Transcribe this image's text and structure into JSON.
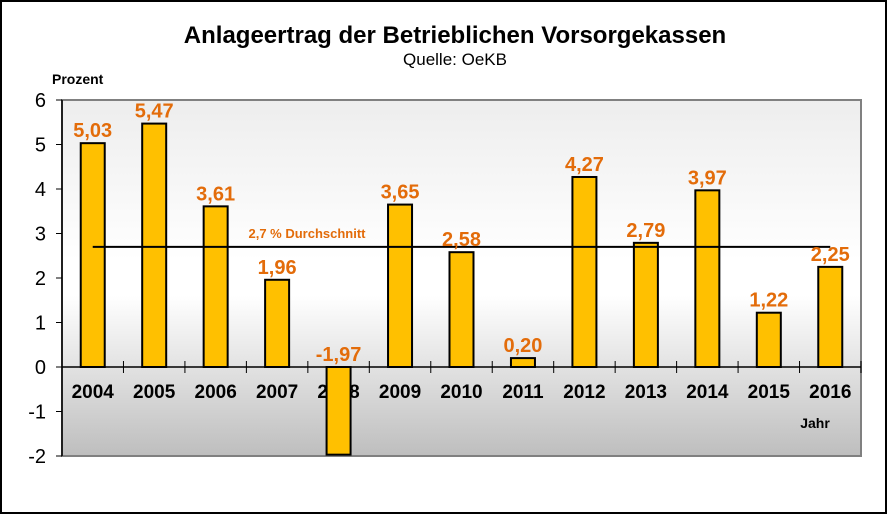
{
  "chart_data": {
    "type": "bar",
    "title": "Anlageertrag der Betrieblichen Vorsorgekassen",
    "subtitle": "Quelle: OeKB",
    "xlabel": "Jahr",
    "ylabel": "Prozent",
    "ylim": [
      -2,
      6
    ],
    "yticks": [
      6,
      5,
      4,
      3,
      2,
      1,
      0,
      -1,
      -2
    ],
    "ytick_labels": [
      "6",
      "5",
      "4",
      "3",
      "2",
      "1",
      "0",
      "-1",
      "-2"
    ],
    "grid": false,
    "categories": [
      "2004",
      "2005",
      "2006",
      "2007",
      "2008",
      "2009",
      "2010",
      "2011",
      "2012",
      "2013",
      "2014",
      "2015",
      "2016"
    ],
    "values": [
      5.03,
      5.47,
      3.61,
      1.96,
      -1.97,
      3.65,
      2.58,
      0.2,
      4.27,
      2.79,
      3.97,
      1.22,
      2.25
    ],
    "data_labels": [
      "5,03",
      "5,47",
      "3,61",
      "1,96",
      "-1,97",
      "3,65",
      "2,58",
      "0,20",
      "4,27",
      "2,79",
      "3,97",
      "1,22",
      "2,25"
    ],
    "average": {
      "value": 2.7,
      "label": "2,7 % Durchschnitt"
    },
    "colors": {
      "bar_fill": "#FFC000",
      "bar_stroke": "#000000",
      "data_label": "#E36C0A",
      "average_line": "#000000",
      "plot_top": "#EDEDED",
      "plot_mid": "#FFFFFF",
      "plot_bottom": "#BEBEBE",
      "plot_border": "#808080"
    }
  }
}
